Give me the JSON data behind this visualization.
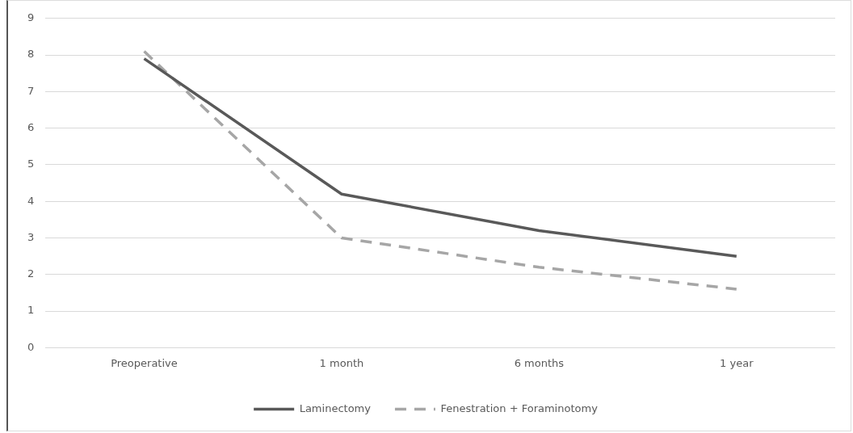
{
  "chart_data": {
    "type": "line",
    "categories": [
      "Preoperative",
      "1 month",
      "6 months",
      "1 year"
    ],
    "series": [
      {
        "name": "Laminectomy",
        "color": "#595959",
        "line_style": "solid",
        "values": [
          7.9,
          4.2,
          3.2,
          2.5
        ]
      },
      {
        "name": "Fenestration + Foraminotomy",
        "color": "#a6a6a6",
        "line_style": "dashed",
        "values": [
          8.1,
          3.0,
          2.2,
          1.6
        ]
      }
    ],
    "ylim": [
      0,
      9
    ],
    "yticks": [
      0,
      1,
      2,
      3,
      4,
      5,
      6,
      7,
      8,
      9
    ],
    "grid": "y",
    "legend": "bottom",
    "marker": "none"
  }
}
